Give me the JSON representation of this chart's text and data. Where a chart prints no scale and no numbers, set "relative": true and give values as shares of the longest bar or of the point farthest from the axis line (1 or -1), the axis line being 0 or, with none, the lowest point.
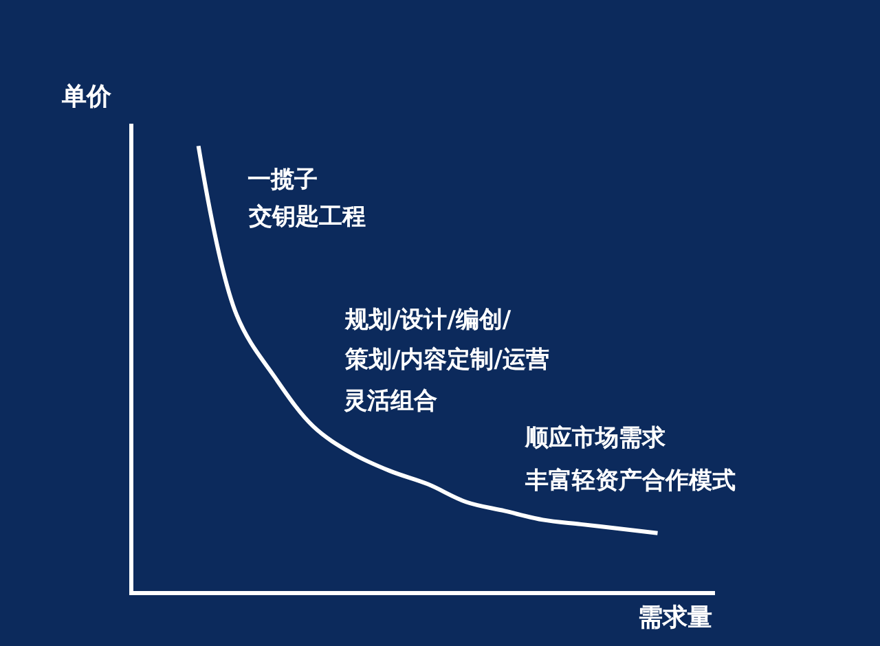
{
  "chart_data": {
    "type": "line",
    "relative": true,
    "xlabel": "需求量",
    "ylabel": "单价",
    "categories": [
      null,
      null,
      null,
      null,
      null,
      null,
      null,
      null,
      null,
      null,
      null,
      null,
      null
    ],
    "series": [
      {
        "color": "#ffffff",
        "values": [
          1,
          0.62,
          0.48,
          0.37,
          0.31,
          0.27,
          0.24,
          0.2,
          0.18,
          0.16,
          0.15,
          0.14,
          0.13
        ]
      }
    ],
    "marker": "none",
    "line_style": "solid",
    "legend": false,
    "annotations": [
      "一揽子",
      "交钥匙工程",
      "规划/设计/编创/",
      "策划/内容定制/运营",
      "灵活组合",
      "顺应市场需求",
      "丰富轻资产合作模式"
    ]
  }
}
